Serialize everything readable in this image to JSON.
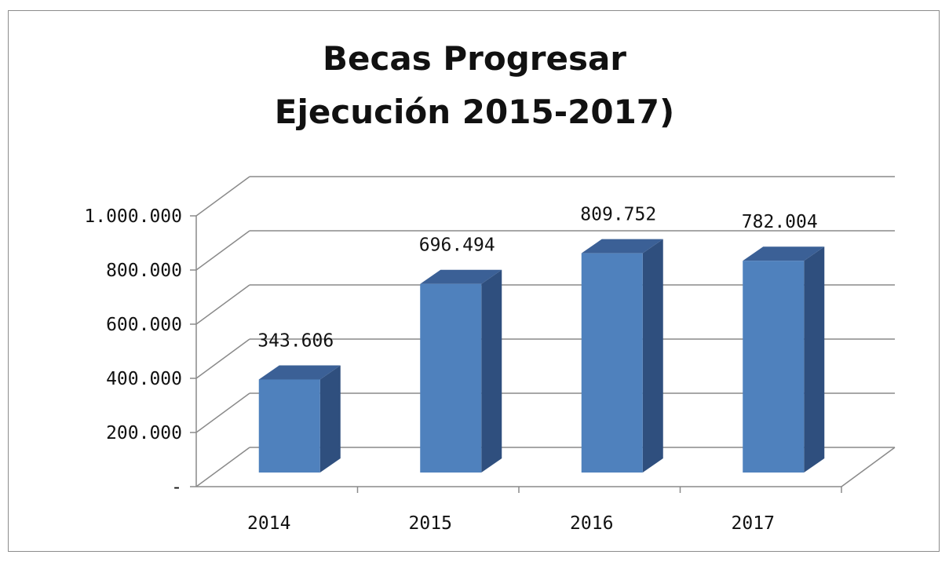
{
  "chart_data": {
    "type": "bar",
    "title_lines": [
      "Becas Progresar",
      "Ejecución 2015-2017)"
    ],
    "categories": [
      "2014",
      "2015",
      "2016",
      "2017"
    ],
    "values": [
      343606,
      696494,
      809752,
      782004
    ],
    "value_labels": [
      "343.606",
      "696.494",
      "809.752",
      "782.004"
    ],
    "ylim": [
      0,
      1000000
    ],
    "yticks": [
      0,
      200000,
      400000,
      600000,
      800000,
      1000000
    ],
    "ytick_labels": [
      "-",
      "200.000",
      "400.000",
      "600.000",
      "800.000",
      "1.000.000"
    ],
    "grid": true,
    "style": "3d-column",
    "bar_color": "#4f81bd"
  }
}
